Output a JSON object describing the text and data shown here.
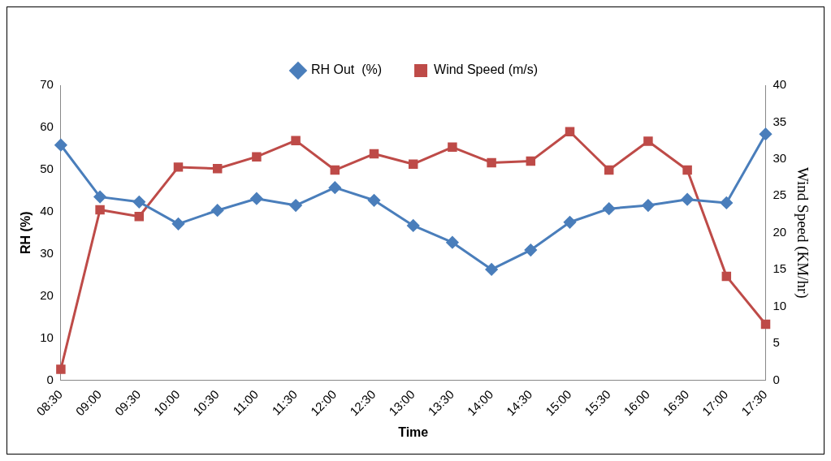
{
  "chart_data": {
    "type": "line",
    "xlabel": "Time",
    "ylabel": "RH (%)",
    "y2label": "Wind Speed (KM/hr)",
    "categories": [
      "08:30",
      "09:00",
      "09:30",
      "10:00",
      "10:30",
      "11:00",
      "11:30",
      "12:00",
      "12:30",
      "13:00",
      "13:30",
      "14:00",
      "14:30",
      "15:00",
      "15:30",
      "16:00",
      "16:30",
      "17:00",
      "17:30"
    ],
    "series": [
      {
        "name": "RH Out  (%)",
        "color": "#4a7ebb",
        "marker": "diamond",
        "values": [
          55.8,
          43.5,
          42.3,
          37.1,
          40.3,
          43.1,
          41.5,
          45.7,
          42.7,
          36.7,
          32.7,
          26.3,
          30.9,
          37.5,
          40.7,
          41.5,
          42.9,
          42.1,
          58.4
        ]
      },
      {
        "name": "Wind Speed (m/s)",
        "color": "#be4b48",
        "marker": "square",
        "axis": "y2",
        "values": [
          1.5,
          23.1,
          22.2,
          28.9,
          28.7,
          30.3,
          32.5,
          28.5,
          30.7,
          29.3,
          31.6,
          29.5,
          29.7,
          33.7,
          28.5,
          32.4,
          28.5,
          14.1,
          7.6
        ]
      }
    ],
    "ylim": [
      0,
      70
    ],
    "yticks": [
      0,
      10,
      20,
      30,
      40,
      50,
      60,
      70
    ],
    "y2lim": [
      0,
      40
    ],
    "y2ticks": [
      0,
      5,
      10,
      15,
      20,
      25,
      30,
      35,
      40
    ],
    "grid": false,
    "legend": "top"
  }
}
